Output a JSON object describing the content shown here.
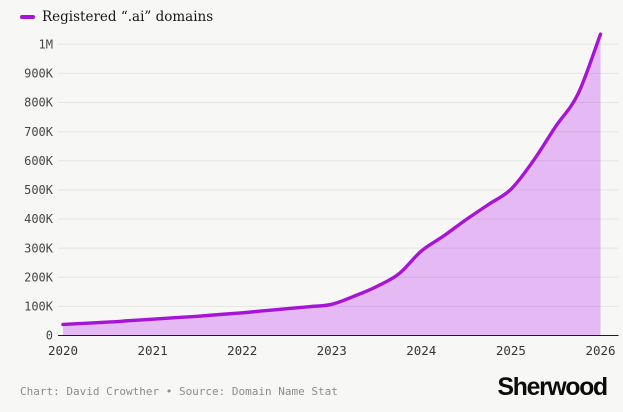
{
  "page": {
    "background_color": "#f7f7f5"
  },
  "legend": {
    "label": "Registered “.ai” domains",
    "swatch_color": "#a614d8"
  },
  "chart_data": {
    "type": "area",
    "title": "Registered “.ai” domains",
    "series": [
      {
        "name": "Registered “.ai” domains",
        "x": [
          2020,
          2020.25,
          2020.5,
          2020.75,
          2021,
          2021.25,
          2021.5,
          2021.75,
          2022,
          2022.25,
          2022.5,
          2022.75,
          2023,
          2023.25,
          2023.5,
          2023.75,
          2024,
          2024.25,
          2024.5,
          2024.75,
          2025,
          2025.25,
          2025.5,
          2025.75,
          2026
        ],
        "y": [
          38000,
          42000,
          46000,
          51000,
          56000,
          61000,
          66000,
          72000,
          78000,
          85000,
          92000,
          99000,
          107000,
          135000,
          168000,
          212000,
          290000,
          342000,
          398000,
          450000,
          502000,
          600000,
          718000,
          830000,
          1035000
        ]
      }
    ],
    "xlabel": "",
    "ylabel": "",
    "xlim": [
      2020,
      2026.05
    ],
    "ylim": [
      0,
      1050000
    ],
    "xticks": {
      "values": [
        2020,
        2021,
        2022,
        2023,
        2024,
        2025,
        2026
      ],
      "labels": [
        "2020",
        "2021",
        "2022",
        "2023",
        "2024",
        "2025",
        "2026"
      ]
    },
    "yticks": {
      "values": [
        0,
        100000,
        200000,
        300000,
        400000,
        500000,
        600000,
        700000,
        800000,
        900000,
        1000000
      ],
      "labels": [
        "0",
        "100K",
        "200K",
        "300K",
        "400K",
        "500K",
        "600K",
        "700K",
        "800K",
        "900K",
        "1M"
      ]
    },
    "grid": true,
    "legend_position": "top-left",
    "line_color": "#a614d8",
    "fill_color": "#e5baf4",
    "gridline_color": "rgba(17,17,17,0.07)",
    "baseline_color": "#1c1c1c"
  },
  "footer": {
    "credit": "Chart: David Crowther • Source: Domain Name Stat",
    "brand": "Sherwood"
  }
}
